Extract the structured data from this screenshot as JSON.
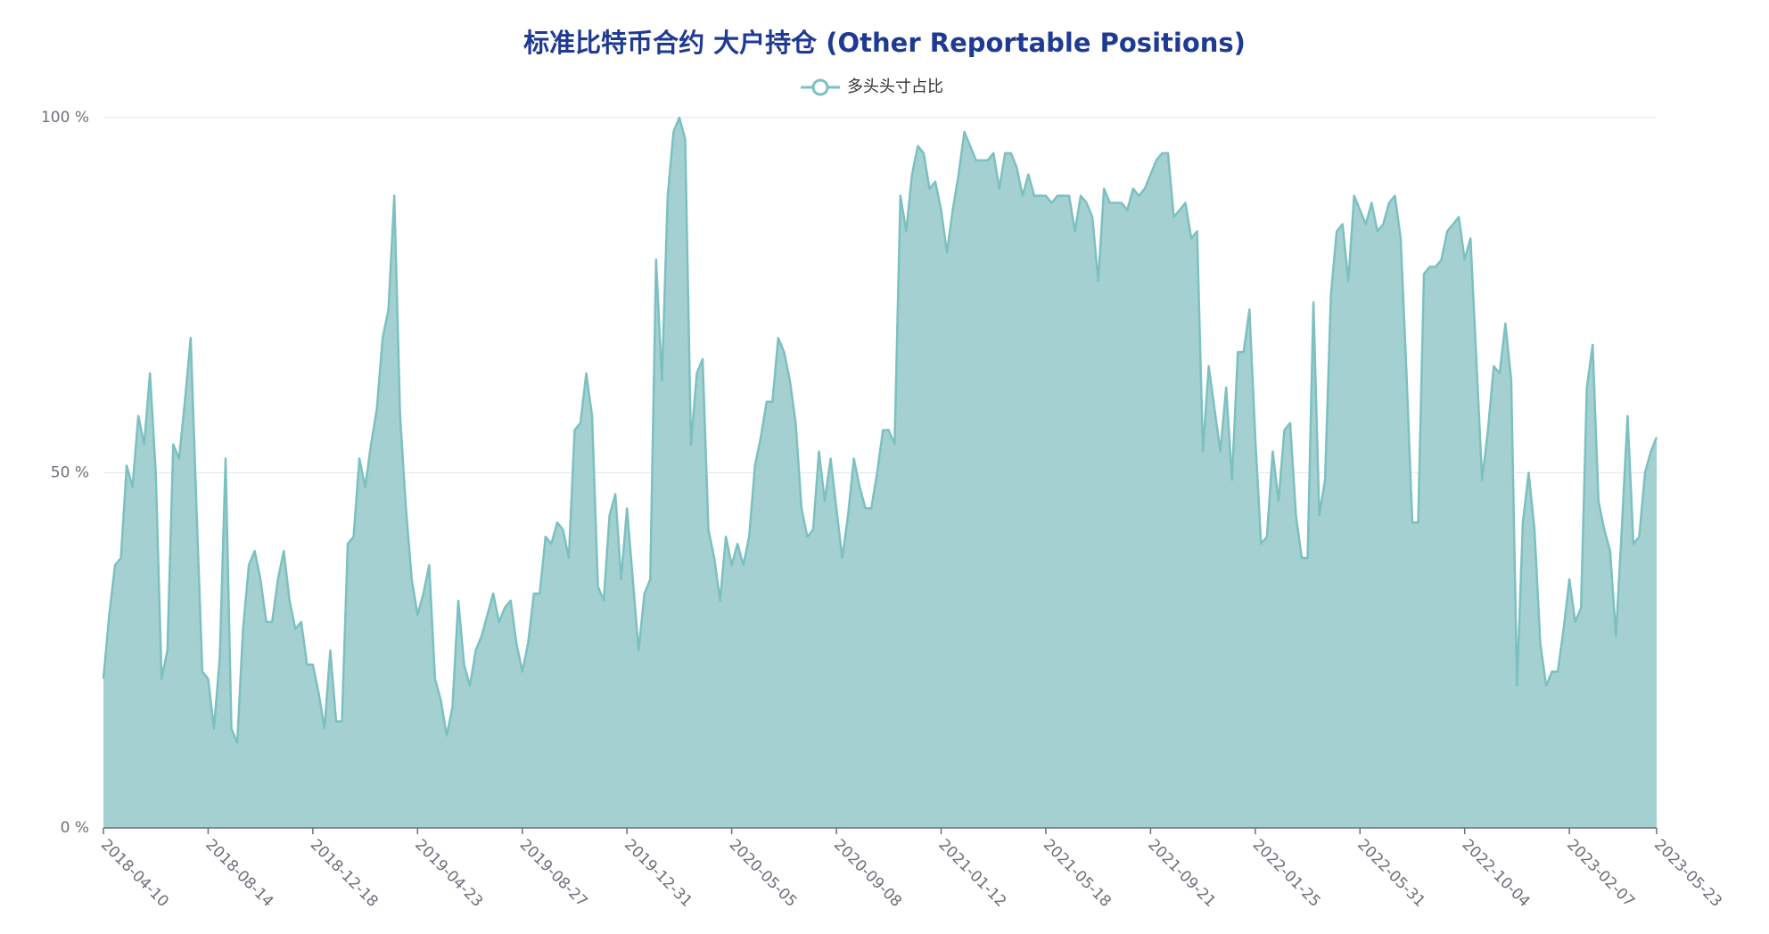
{
  "chart_data": {
    "type": "area",
    "title": "标准比特币合约 大户持仓 (Other Reportable Positions)",
    "categories": [
      "2018-04-10",
      null,
      null,
      null,
      null,
      null,
      null,
      null,
      null,
      null,
      null,
      null,
      null,
      null,
      null,
      null,
      null,
      null,
      "2018-08-14",
      null,
      null,
      null,
      null,
      null,
      null,
      null,
      null,
      null,
      null,
      null,
      null,
      null,
      null,
      null,
      null,
      null,
      "2018-12-18",
      null,
      null,
      null,
      null,
      null,
      null,
      null,
      null,
      null,
      null,
      null,
      null,
      null,
      null,
      null,
      null,
      null,
      "2019-04-23",
      null,
      null,
      null,
      null,
      null,
      null,
      null,
      null,
      null,
      null,
      null,
      null,
      null,
      null,
      null,
      null,
      null,
      "2019-08-27",
      null,
      null,
      null,
      null,
      null,
      null,
      null,
      null,
      null,
      null,
      null,
      null,
      null,
      null,
      null,
      null,
      null,
      "2019-12-31",
      null,
      null,
      null,
      null,
      null,
      null,
      null,
      null,
      null,
      null,
      null,
      null,
      null,
      null,
      null,
      null,
      null,
      "2020-05-05",
      null,
      null,
      null,
      null,
      null,
      null,
      null,
      null,
      null,
      null,
      null,
      null,
      null,
      null,
      null,
      null,
      null,
      "2020-09-08",
      null,
      null,
      null,
      null,
      null,
      null,
      null,
      null,
      null,
      null,
      null,
      null,
      null,
      null,
      null,
      null,
      null,
      "2021-01-12",
      null,
      null,
      null,
      null,
      null,
      null,
      null,
      null,
      null,
      null,
      null,
      null,
      null,
      null,
      null,
      null,
      null,
      "2021-05-18",
      null,
      null,
      null,
      null,
      null,
      null,
      null,
      null,
      null,
      null,
      null,
      null,
      null,
      null,
      null,
      null,
      null,
      "2021-09-21",
      null,
      null,
      null,
      null,
      null,
      null,
      null,
      null,
      null,
      null,
      null,
      null,
      null,
      null,
      null,
      null,
      null,
      "2022-01-25",
      null,
      null,
      null,
      null,
      null,
      null,
      null,
      null,
      null,
      null,
      null,
      null,
      null,
      null,
      null,
      null,
      null,
      "2022-05-31",
      null,
      null,
      null,
      null,
      null,
      null,
      null,
      null,
      null,
      null,
      null,
      null,
      null,
      null,
      null,
      null,
      null,
      "2022-10-04",
      null,
      null,
      null,
      null,
      null,
      null,
      null,
      null,
      null,
      null,
      null,
      null,
      null,
      null,
      null,
      null,
      null,
      "2023-02-07",
      null,
      null,
      null,
      null,
      null,
      null,
      null,
      null,
      null,
      null,
      null,
      null,
      null,
      null,
      "2023-05-23"
    ],
    "series": [
      {
        "name": "多头头寸占比",
        "color": "#7cc0c0",
        "fill": "#a5d0d1",
        "values": [
          21,
          30,
          37,
          38,
          51,
          48,
          58,
          54,
          64,
          50,
          21,
          25,
          54,
          52,
          60,
          69,
          45,
          22,
          21,
          14,
          24,
          52,
          14,
          12,
          28,
          37,
          39,
          35,
          29,
          29,
          35,
          39,
          32,
          28,
          29,
          23,
          23,
          19,
          14,
          25,
          15,
          15,
          40,
          41,
          52,
          48,
          54,
          59,
          69,
          73,
          89,
          58,
          45,
          35,
          30,
          33,
          37,
          21,
          18,
          13,
          17,
          32,
          23,
          20,
          25,
          27,
          30,
          33,
          29,
          31,
          32,
          26,
          22,
          26,
          33,
          33,
          41,
          40,
          43,
          42,
          38,
          56,
          57,
          64,
          58,
          34,
          32,
          44,
          47,
          35,
          45,
          35,
          25,
          33,
          35,
          80,
          63,
          89,
          98,
          100,
          97,
          54,
          64,
          66,
          42,
          38,
          32,
          41,
          37,
          40,
          37,
          41,
          51,
          55,
          60,
          60,
          69,
          67,
          63,
          57,
          45,
          41,
          42,
          53,
          46,
          52,
          45,
          38,
          44,
          52,
          48,
          45,
          45,
          50,
          56,
          56,
          54,
          89,
          84,
          92,
          96,
          95,
          90,
          91,
          87,
          81,
          87,
          92,
          98,
          96,
          94,
          94,
          94,
          95,
          90,
          95,
          95,
          93,
          89,
          92,
          89,
          89,
          89,
          88,
          89,
          89,
          89,
          84,
          89,
          88,
          86,
          77,
          90,
          88,
          88,
          88,
          87,
          90,
          89,
          90,
          92,
          94,
          95,
          95,
          86,
          87,
          88,
          83,
          84,
          53,
          65,
          59,
          53,
          62,
          49,
          67,
          67,
          73,
          55,
          40,
          41,
          53,
          46,
          56,
          57,
          44,
          38,
          38,
          74,
          44,
          49,
          75,
          84,
          85,
          77,
          89,
          87,
          85,
          88,
          84,
          85,
          88,
          89,
          83,
          64,
          43,
          43,
          78,
          79,
          79,
          80,
          84,
          85,
          86,
          80,
          83,
          66,
          49,
          56,
          65,
          64,
          71,
          63,
          20,
          43,
          50,
          42,
          26,
          20,
          22,
          22,
          28,
          35,
          29,
          31,
          62,
          68,
          46,
          42,
          39,
          27,
          42,
          58,
          40,
          41,
          50,
          53,
          55
        ]
      }
    ],
    "ylim": [
      0,
      100
    ],
    "yticks": [
      {
        "value": 0,
        "label": "0 %"
      },
      {
        "value": 50,
        "label": "50 %"
      },
      {
        "value": 100,
        "label": "100 %"
      }
    ],
    "grid": true,
    "legend": "top"
  }
}
